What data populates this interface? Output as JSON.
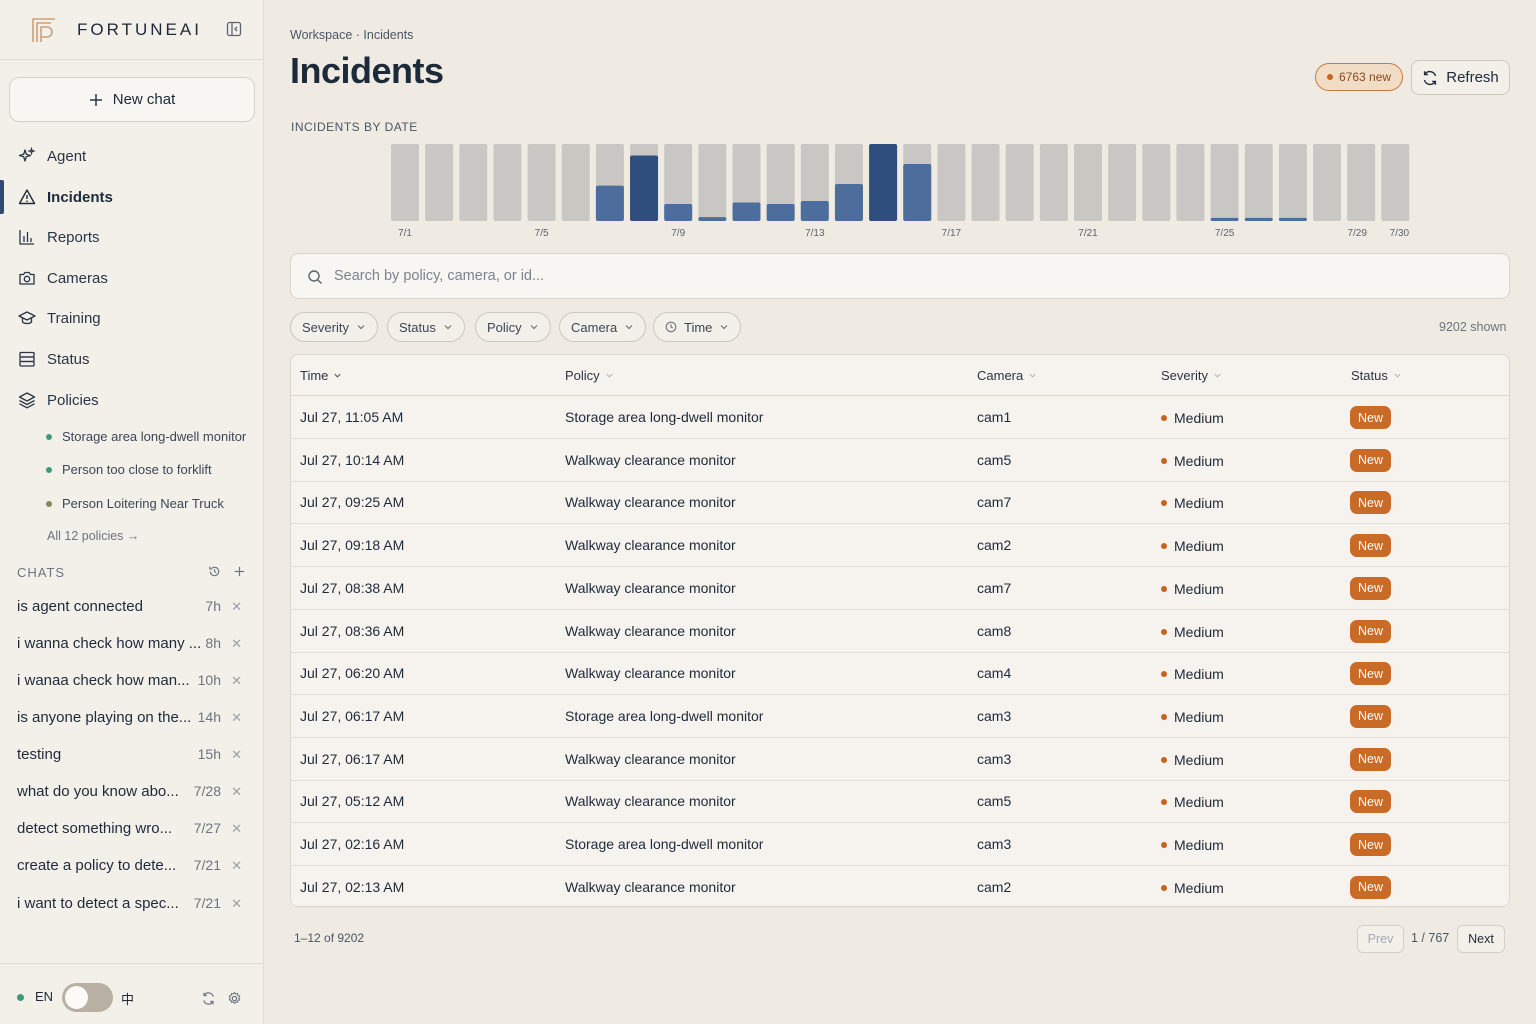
{
  "brand": {
    "name": "FORTUNEAI"
  },
  "sidebar": {
    "new_chat_label": "New chat",
    "nav": [
      {
        "label": "Agent",
        "icon": "sparkle-icon"
      },
      {
        "label": "Incidents",
        "icon": "warning-icon",
        "active": true
      },
      {
        "label": "Reports",
        "icon": "bar-chart-icon"
      },
      {
        "label": "Cameras",
        "icon": "camera-icon"
      },
      {
        "label": "Training",
        "icon": "graduation-cap-icon"
      },
      {
        "label": "Status",
        "icon": "server-icon"
      },
      {
        "label": "Policies",
        "icon": "layers-icon"
      }
    ],
    "policies": [
      {
        "label": "Storage area long-dwell monitor",
        "dot": "#3d9a7c"
      },
      {
        "label": "Person too close to forklift",
        "dot": "#3d9a7c"
      },
      {
        "label": "Person Loitering Near Truck",
        "dot": "#7e8a58"
      }
    ],
    "all_policies": "All 12 policies →",
    "chats_heading": "CHATS",
    "chats": [
      {
        "title": "is agent connected",
        "age": "7h"
      },
      {
        "title": "i wanna check how many ...",
        "age": "8h"
      },
      {
        "title": "i wanaa check how man...",
        "age": "10h"
      },
      {
        "title": "is anyone playing on the...",
        "age": "14h"
      },
      {
        "title": "testing",
        "age": "15h"
      },
      {
        "title": "what do you know abo...",
        "age": "7/28"
      },
      {
        "title": "detect something wro...",
        "age": "7/27"
      },
      {
        "title": "create a policy to dete...",
        "age": "7/21"
      },
      {
        "title": "i want to detect a spec...",
        "age": "7/21"
      }
    ],
    "footer": {
      "lang_en": "EN",
      "lang_zh": "中",
      "toggle_state": "EN"
    }
  },
  "header": {
    "breadcrumb": "Workspace · Incidents",
    "title": "Incidents",
    "new_badge": "6763 new",
    "refresh_label": "Refresh"
  },
  "chart_data": {
    "type": "bar",
    "title": "INCIDENTS BY DATE",
    "categories": [
      "7/1",
      "7/2",
      "7/3",
      "7/4",
      "7/5",
      "7/6",
      "7/7",
      "7/8",
      "7/9",
      "7/10",
      "7/11",
      "7/12",
      "7/13",
      "7/14",
      "7/15",
      "7/16",
      "7/17",
      "7/18",
      "7/19",
      "7/20",
      "7/21",
      "7/22",
      "7/23",
      "7/24",
      "7/25",
      "7/26",
      "7/27",
      "7/28",
      "7/29",
      "7/30"
    ],
    "tick_labels": [
      "7/1",
      "7/5",
      "7/9",
      "7/13",
      "7/17",
      "7/21",
      "7/25",
      "7/29",
      "7/30"
    ],
    "values": [
      0,
      0,
      0,
      0,
      0,
      0,
      0.46,
      0.85,
      0.22,
      0.05,
      0.24,
      0.22,
      0.26,
      0.48,
      1.0,
      0.74,
      0,
      0,
      0,
      0,
      0,
      0,
      0,
      0,
      0.04,
      0.04,
      0.04,
      0,
      0,
      0
    ],
    "value_scale": "fraction of day maximum",
    "colors": {
      "track": "#c9c7c4",
      "fill": "#4d6d9c",
      "fill_max": "#2f4d7d"
    }
  },
  "search": {
    "placeholder": "Search by policy, camera, or id..."
  },
  "filters": [
    {
      "label": "Severity"
    },
    {
      "label": "Status"
    },
    {
      "label": "Policy"
    },
    {
      "label": "Camera"
    },
    {
      "label": "Time",
      "icon": "clock-icon"
    }
  ],
  "shown_count": "9202 shown",
  "table": {
    "columns": [
      "Time",
      "Policy",
      "Camera",
      "Severity",
      "Status"
    ],
    "rows": [
      {
        "time": "Jul 27, 11:05 AM",
        "policy": "Storage area long-dwell monitor",
        "camera": "cam1",
        "severity": "Medium",
        "status": "New"
      },
      {
        "time": "Jul 27, 10:14 AM",
        "policy": "Walkway clearance monitor",
        "camera": "cam5",
        "severity": "Medium",
        "status": "New"
      },
      {
        "time": "Jul 27, 09:25 AM",
        "policy": "Walkway clearance monitor",
        "camera": "cam7",
        "severity": "Medium",
        "status": "New"
      },
      {
        "time": "Jul 27, 09:18 AM",
        "policy": "Walkway clearance monitor",
        "camera": "cam2",
        "severity": "Medium",
        "status": "New"
      },
      {
        "time": "Jul 27, 08:38 AM",
        "policy": "Walkway clearance monitor",
        "camera": "cam7",
        "severity": "Medium",
        "status": "New"
      },
      {
        "time": "Jul 27, 08:36 AM",
        "policy": "Walkway clearance monitor",
        "camera": "cam8",
        "severity": "Medium",
        "status": "New"
      },
      {
        "time": "Jul 27, 06:20 AM",
        "policy": "Walkway clearance monitor",
        "camera": "cam4",
        "severity": "Medium",
        "status": "New"
      },
      {
        "time": "Jul 27, 06:17 AM",
        "policy": "Storage area long-dwell monitor",
        "camera": "cam3",
        "severity": "Medium",
        "status": "New"
      },
      {
        "time": "Jul 27, 06:17 AM",
        "policy": "Walkway clearance monitor",
        "camera": "cam3",
        "severity": "Medium",
        "status": "New"
      },
      {
        "time": "Jul 27, 05:12 AM",
        "policy": "Walkway clearance monitor",
        "camera": "cam5",
        "severity": "Medium",
        "status": "New"
      },
      {
        "time": "Jul 27, 02:16 AM",
        "policy": "Storage area long-dwell monitor",
        "camera": "cam3",
        "severity": "Medium",
        "status": "New"
      },
      {
        "time": "Jul 27, 02:13 AM",
        "policy": "Walkway clearance monitor",
        "camera": "cam2",
        "severity": "Medium",
        "status": "New"
      }
    ]
  },
  "pagination": {
    "range": "1–12 of 9202",
    "prev": "Prev",
    "page": "1 / 767",
    "next": "Next"
  },
  "colors": {
    "accent": "#2f4a73",
    "status_new": "#c96a26",
    "severity_medium": "#c8621e"
  }
}
